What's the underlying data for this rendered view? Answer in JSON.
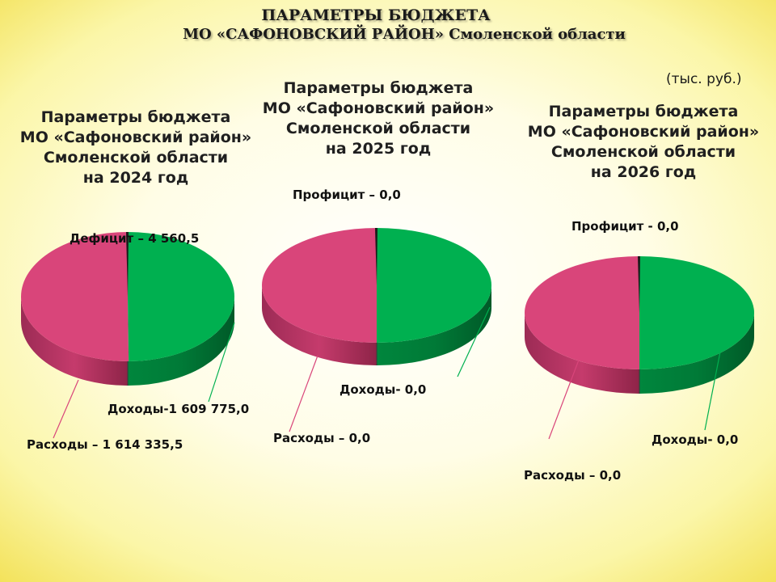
{
  "page": {
    "title_line1": "ПАРАМЕТРЫ БЮДЖЕТА",
    "title_line2": "МО «САФОНОВСКИЙ РАЙОН» Смоленской области",
    "units": "(тыс. руб.)"
  },
  "colors": {
    "income": "#00b050",
    "expense": "#d9457a",
    "balance": "#1a1a1a"
  },
  "chart_data": [
    {
      "type": "pie",
      "title": "Параметры бюджета\nМО «Сафоновский район»\nСмоленской области\nна 2024 год",
      "labels": [
        "Доходы",
        "Расходы",
        "Дефицит"
      ],
      "values": [
        1609775.0,
        1614335.5,
        4560.5
      ],
      "label_texts": [
        "Доходы-1 609 775,0",
        "Расходы – 1 614 335,5",
        "Дефицит – 4 560,5"
      ]
    },
    {
      "type": "pie",
      "title": "Параметры бюджета\nМО «Сафоновский район»\nСмоленской области\nна 2025 год",
      "labels": [
        "Доходы",
        "Расходы",
        "Профицит"
      ],
      "values": [
        0.0,
        0.0,
        0.0
      ],
      "label_texts": [
        "Доходы- 0,0",
        "Расходы – 0,0",
        "Профицит – 0,0"
      ]
    },
    {
      "type": "pie",
      "title": "Параметры бюджета\nМО «Сафоновский район»\nСмоленской области\nна 2026 год",
      "labels": [
        "Доходы",
        "Расходы",
        "Профицит"
      ],
      "values": [
        0.0,
        0.0,
        0.0
      ],
      "label_texts": [
        "Доходы- 0,0",
        "Расходы – 0,0",
        "Профицит -  0,0"
      ]
    }
  ]
}
